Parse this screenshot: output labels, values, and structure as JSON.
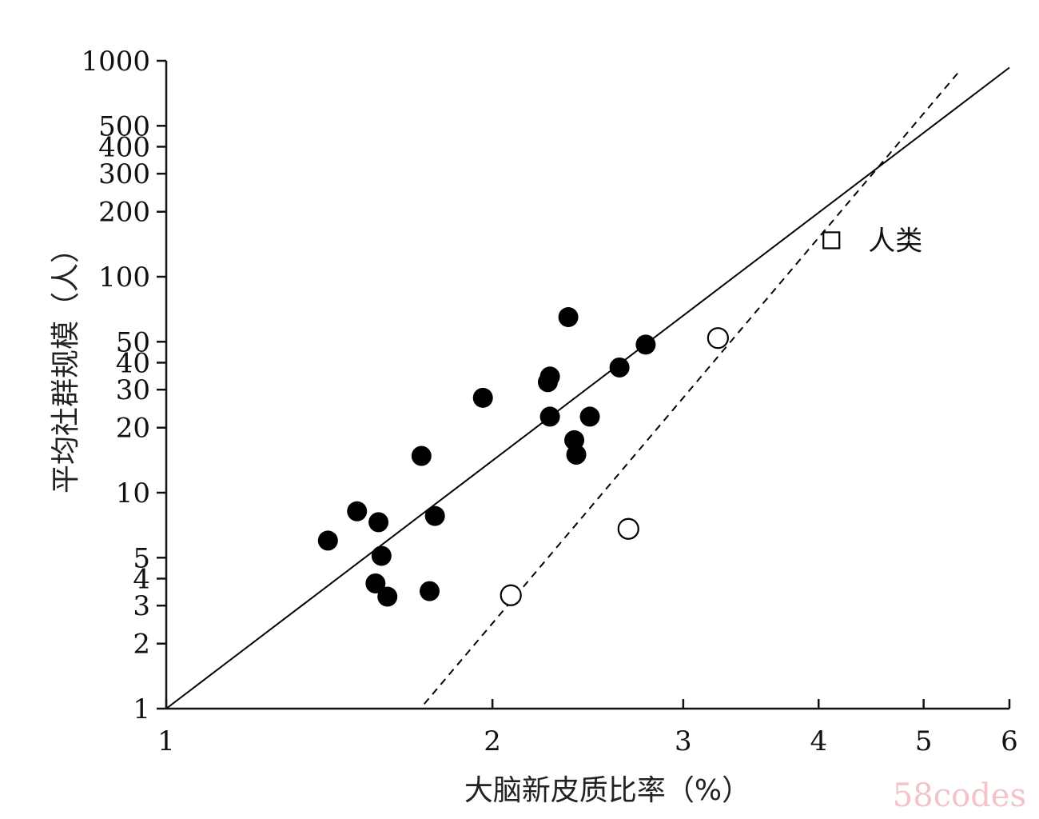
{
  "watermark": "58codes",
  "chart_data": {
    "type": "scatter",
    "title": "",
    "xlabel": "大脑新皮质比率（%）",
    "ylabel": "平均社群规模（人）",
    "x_scale": "log",
    "y_scale": "log",
    "xlim": [
      1,
      6
    ],
    "ylim": [
      1,
      1000
    ],
    "x_ticks": [
      {
        "value": 1,
        "label": "1"
      },
      {
        "value": 2,
        "label": "2"
      },
      {
        "value": 3,
        "label": "3"
      },
      {
        "value": 4,
        "label": "4"
      },
      {
        "value": 5,
        "label": "5"
      },
      {
        "value": 6,
        "label": "6"
      }
    ],
    "y_ticks": [
      {
        "value": 1,
        "label": "1"
      },
      {
        "value": 2,
        "label": "2"
      },
      {
        "value": 3,
        "label": "3"
      },
      {
        "value": 4,
        "label": "4"
      },
      {
        "value": 5,
        "label": "5"
      },
      {
        "value": 10,
        "label": "10"
      },
      {
        "value": 20,
        "label": "20"
      },
      {
        "value": 30,
        "label": "30"
      },
      {
        "value": 40,
        "label": "40"
      },
      {
        "value": 50,
        "label": "50"
      },
      {
        "value": 100,
        "label": "100"
      },
      {
        "value": 200,
        "label": "200"
      },
      {
        "value": 300,
        "label": "300"
      },
      {
        "value": 400,
        "label": "400"
      },
      {
        "value": 500,
        "label": "500"
      },
      {
        "value": 1000,
        "label": "1000"
      }
    ],
    "grid": false,
    "legend": "none",
    "series": [
      {
        "marker": "filled-circle",
        "color": "#000000",
        "points": [
          {
            "x": 1.41,
            "y": 6.0
          },
          {
            "x": 1.5,
            "y": 8.2
          },
          {
            "x": 1.57,
            "y": 7.3
          },
          {
            "x": 1.58,
            "y": 5.1
          },
          {
            "x": 1.56,
            "y": 3.8
          },
          {
            "x": 1.6,
            "y": 3.3
          },
          {
            "x": 1.75,
            "y": 3.5
          },
          {
            "x": 1.77,
            "y": 7.8
          },
          {
            "x": 1.72,
            "y": 14.8
          },
          {
            "x": 1.96,
            "y": 27.5
          },
          {
            "x": 2.25,
            "y": 32.5
          },
          {
            "x": 2.26,
            "y": 34.5
          },
          {
            "x": 2.26,
            "y": 22.5
          },
          {
            "x": 2.35,
            "y": 65.0
          },
          {
            "x": 2.38,
            "y": 17.5
          },
          {
            "x": 2.39,
            "y": 15.0
          },
          {
            "x": 2.46,
            "y": 22.5
          },
          {
            "x": 2.62,
            "y": 38.0
          },
          {
            "x": 2.77,
            "y": 48.5
          }
        ]
      },
      {
        "marker": "open-circle",
        "color": "#000000",
        "points": [
          {
            "x": 2.08,
            "y": 3.35
          },
          {
            "x": 2.67,
            "y": 6.8
          },
          {
            "x": 3.23,
            "y": 52.0
          }
        ]
      },
      {
        "marker": "open-square",
        "color": "#000000",
        "points": [
          {
            "x": 4.11,
            "y": 147.5
          }
        ]
      }
    ],
    "lines": [
      {
        "style": "solid",
        "color": "#000000",
        "x0": 1.0,
        "y0": 1.0,
        "x1": 6.0,
        "y1": 930.0
      },
      {
        "style": "dashed",
        "color": "#000000",
        "x0": 1.73,
        "y0": 1.05,
        "x1": 5.4,
        "y1": 900.0
      }
    ],
    "annotations": [
      {
        "text": "人类",
        "x": 4.11,
        "y": 147.5
      }
    ]
  }
}
